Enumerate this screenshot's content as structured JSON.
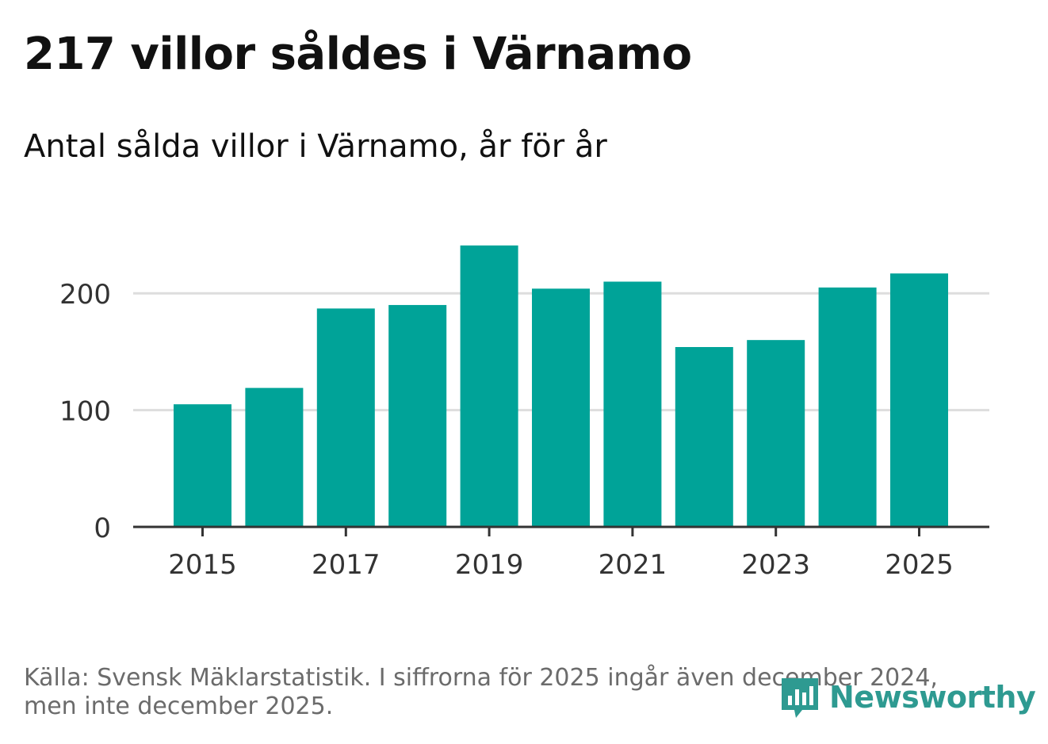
{
  "header": {
    "title": "217 villor såldes i Värnamo",
    "subtitle": "Antal sålda villor i Värnamo, år för år"
  },
  "footer": {
    "source_line1": "Källa: Svensk Mäklarstatistik. I siffrorna för 2025 ingår även december 2024,",
    "source_line2": "men inte december 2025.",
    "brand_name": "Newsworthy"
  },
  "colors": {
    "bar": "#00a398",
    "grid": "#dddddd",
    "axis": "#333333",
    "brand": "#2e9a91"
  },
  "chart_data": {
    "type": "bar",
    "title": "Antal sålda villor i Värnamo, år för år",
    "categories": [
      "2015",
      "2016",
      "2017",
      "2018",
      "2019",
      "2020",
      "2021",
      "2022",
      "2023",
      "2024",
      "2025"
    ],
    "values": [
      105,
      119,
      187,
      190,
      241,
      204,
      210,
      154,
      160,
      205,
      217
    ],
    "x_tick_labels": [
      "2015",
      "2017",
      "2019",
      "2021",
      "2023",
      "2025"
    ],
    "y_ticks": [
      0,
      100,
      200
    ],
    "y_tick_labels": [
      "0",
      "100",
      "200"
    ],
    "ylim": [
      0,
      250
    ],
    "xlabel": "",
    "ylabel": "",
    "grid": true
  }
}
